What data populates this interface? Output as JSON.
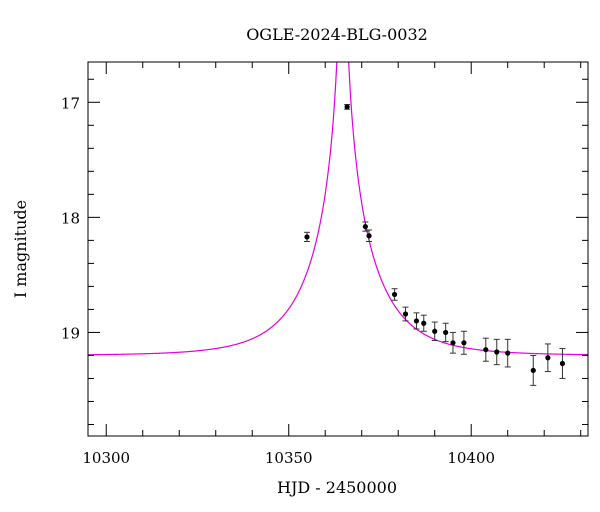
{
  "chart_data": {
    "type": "scatter",
    "title": "OGLE-2024-BLG-0032",
    "xlabel": "HJD - 2450000",
    "ylabel": "I magnitude",
    "xlim": [
      10295,
      10432
    ],
    "ylim": [
      16.65,
      19.9
    ],
    "y_inverted": true,
    "grid": false,
    "x_ticks": [
      10300,
      10350,
      10400
    ],
    "y_ticks": [
      17,
      18,
      19
    ],
    "colors": {
      "model": "#e000e0",
      "points": "#000000"
    },
    "series": [
      {
        "values": [
          {
            "x": 10355,
            "y": 18.17,
            "err": 0.04
          },
          {
            "x": 10366,
            "y": 17.04,
            "err": 0.02
          },
          {
            "x": 10371,
            "y": 18.08,
            "err": 0.04
          },
          {
            "x": 10372,
            "y": 18.16,
            "err": 0.05
          },
          {
            "x": 10379,
            "y": 18.67,
            "err": 0.05
          },
          {
            "x": 10382,
            "y": 18.84,
            "err": 0.06
          },
          {
            "x": 10385,
            "y": 18.9,
            "err": 0.07
          },
          {
            "x": 10387,
            "y": 18.92,
            "err": 0.07
          },
          {
            "x": 10390,
            "y": 18.99,
            "err": 0.08
          },
          {
            "x": 10393,
            "y": 19.0,
            "err": 0.08
          },
          {
            "x": 10395,
            "y": 19.09,
            "err": 0.09
          },
          {
            "x": 10398,
            "y": 19.09,
            "err": 0.1
          },
          {
            "x": 10404,
            "y": 19.15,
            "err": 0.1
          },
          {
            "x": 10407,
            "y": 19.17,
            "err": 0.11
          },
          {
            "x": 10410,
            "y": 19.18,
            "err": 0.12
          },
          {
            "x": 10417,
            "y": 19.33,
            "err": 0.13
          },
          {
            "x": 10421,
            "y": 19.22,
            "err": 0.12
          },
          {
            "x": 10425,
            "y": 19.27,
            "err": 0.13
          }
        ]
      }
    ],
    "model": {
      "type": "pspl",
      "t0": 10364.8,
      "u0": 0.005,
      "tE": 17,
      "baseline_mag": 19.2
    }
  }
}
